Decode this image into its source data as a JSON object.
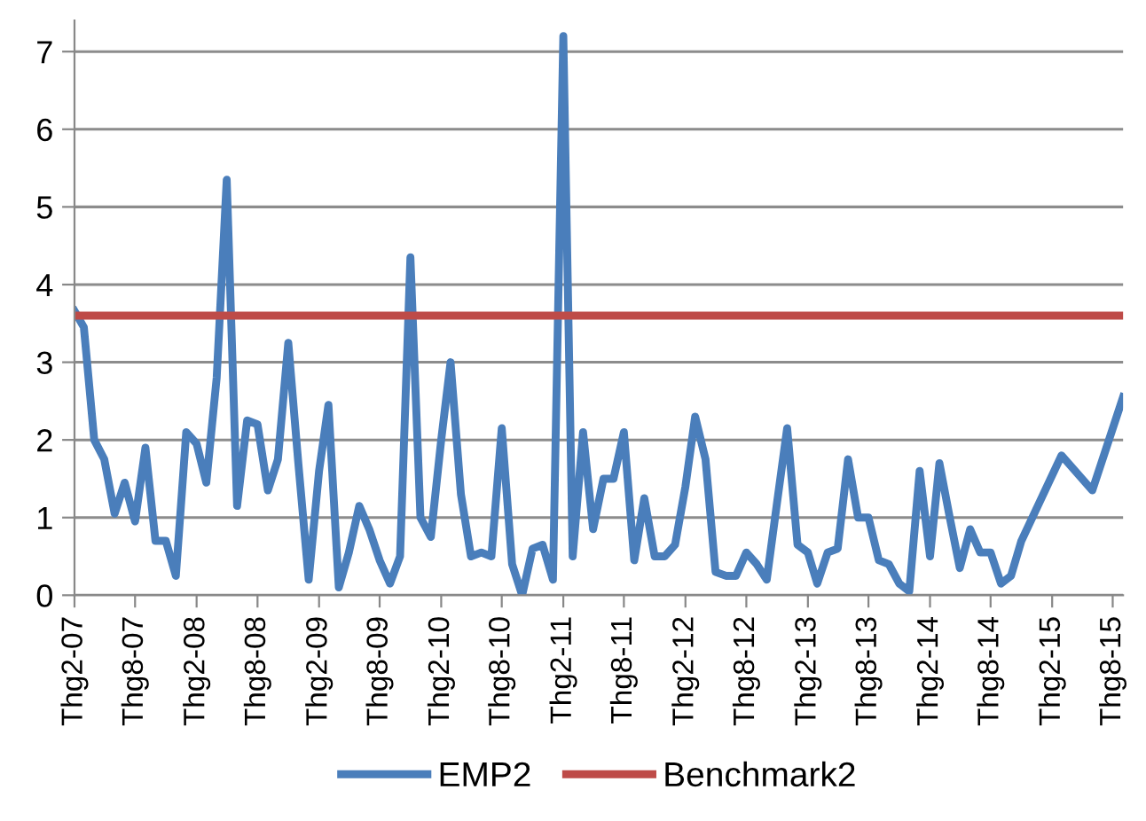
{
  "chart_data": {
    "type": "line",
    "series": [
      {
        "name": "EMP2",
        "color": "#4a7ebb",
        "x": [
          "2007-02",
          "2007-03",
          "2007-04",
          "2007-05",
          "2007-06",
          "2007-07",
          "2007-08",
          "2007-09",
          "2007-10",
          "2007-11",
          "2007-12",
          "2008-01",
          "2008-02",
          "2008-03",
          "2008-04",
          "2008-05",
          "2008-06",
          "2008-07",
          "2008-08",
          "2008-09",
          "2008-10",
          "2008-11",
          "2008-12",
          "2009-01",
          "2009-02",
          "2009-03",
          "2009-04",
          "2009-05",
          "2009-06",
          "2009-07",
          "2009-08",
          "2009-09",
          "2009-10",
          "2009-11",
          "2009-12",
          "2010-01",
          "2010-02",
          "2010-03",
          "2010-04",
          "2010-05",
          "2010-06",
          "2010-07",
          "2010-08",
          "2010-09",
          "2010-10",
          "2010-11",
          "2010-12",
          "2011-01",
          "2011-02",
          "2011-03",
          "2011-04",
          "2011-05",
          "2011-06",
          "2011-07",
          "2011-08",
          "2011-09",
          "2011-10",
          "2011-11",
          "2011-12",
          "2012-01",
          "2012-02",
          "2012-03",
          "2012-04",
          "2012-05",
          "2012-06",
          "2012-07",
          "2012-08",
          "2012-09",
          "2012-10",
          "2012-11",
          "2012-12",
          "2013-01",
          "2013-02",
          "2013-03",
          "2013-04",
          "2013-05",
          "2013-06",
          "2013-07",
          "2013-08",
          "2013-09",
          "2013-10",
          "2013-11",
          "2013-12",
          "2014-01",
          "2014-02",
          "2014-03",
          "2014-04",
          "2014-05",
          "2014-06",
          "2014-07",
          "2014-08",
          "2014-09",
          "2014-10",
          "2014-11",
          "2015-03",
          "2015-06",
          "2015-09"
        ],
        "values": [
          3.66,
          3.45,
          2.0,
          1.75,
          1.05,
          1.45,
          0.95,
          1.9,
          0.7,
          0.7,
          0.25,
          2.1,
          1.95,
          1.45,
          2.8,
          5.35,
          1.15,
          2.25,
          2.2,
          1.35,
          1.75,
          3.25,
          1.7,
          0.2,
          1.6,
          2.45,
          0.1,
          0.55,
          1.15,
          0.85,
          0.45,
          0.15,
          0.5,
          4.35,
          1.0,
          0.75,
          2.0,
          3.0,
          1.3,
          0.5,
          0.55,
          0.5,
          2.15,
          0.4,
          0.0,
          0.6,
          0.65,
          0.2,
          7.2,
          0.5,
          2.1,
          0.85,
          1.5,
          1.5,
          2.1,
          0.45,
          1.25,
          0.5,
          0.5,
          0.65,
          1.4,
          2.3,
          1.75,
          0.3,
          0.25,
          0.25,
          0.55,
          0.4,
          0.2,
          1.2,
          2.15,
          0.65,
          0.55,
          0.15,
          0.55,
          0.6,
          1.75,
          1.0,
          1.0,
          0.45,
          0.4,
          0.15,
          0.05,
          1.6,
          0.5,
          1.7,
          1.0,
          0.35,
          0.85,
          0.55,
          0.55,
          0.15,
          0.25,
          0.7,
          1.8,
          1.35,
          2.55
        ]
      },
      {
        "name": "Benchmark2",
        "color": "#be4b48",
        "x": [
          "2007-02",
          "2015-09"
        ],
        "values": [
          3.6,
          3.6
        ]
      }
    ],
    "xlim": [
      "2007-02",
      "2015-09"
    ],
    "xticks": [
      {
        "value": "2007-02",
        "label": "Thg2-07"
      },
      {
        "value": "2007-08",
        "label": "Thg8-07"
      },
      {
        "value": "2008-02",
        "label": "Thg2-08"
      },
      {
        "value": "2008-08",
        "label": "Thg8-08"
      },
      {
        "value": "2009-02",
        "label": "Thg2-09"
      },
      {
        "value": "2009-08",
        "label": "Thg8-09"
      },
      {
        "value": "2010-02",
        "label": "Thg2-10"
      },
      {
        "value": "2010-08",
        "label": "Thg8-10"
      },
      {
        "value": "2011-02",
        "label": "Thg2-11"
      },
      {
        "value": "2011-08",
        "label": "Thg8-11"
      },
      {
        "value": "2012-02",
        "label": "Thg2-12"
      },
      {
        "value": "2012-08",
        "label": "Thg8-12"
      },
      {
        "value": "2013-02",
        "label": "Thg2-13"
      },
      {
        "value": "2013-08",
        "label": "Thg8-13"
      },
      {
        "value": "2014-02",
        "label": "Thg2-14"
      },
      {
        "value": "2014-08",
        "label": "Thg8-14"
      },
      {
        "value": "2015-02",
        "label": "Thg2-15"
      },
      {
        "value": "2015-08",
        "label": "Thg8-15"
      }
    ],
    "ylim": [
      0,
      7.4
    ],
    "yticks": [
      0,
      1,
      2,
      3,
      4,
      5,
      6,
      7
    ],
    "grid": "y",
    "legend": "bottom",
    "marker": "none",
    "line_style": "solid"
  }
}
